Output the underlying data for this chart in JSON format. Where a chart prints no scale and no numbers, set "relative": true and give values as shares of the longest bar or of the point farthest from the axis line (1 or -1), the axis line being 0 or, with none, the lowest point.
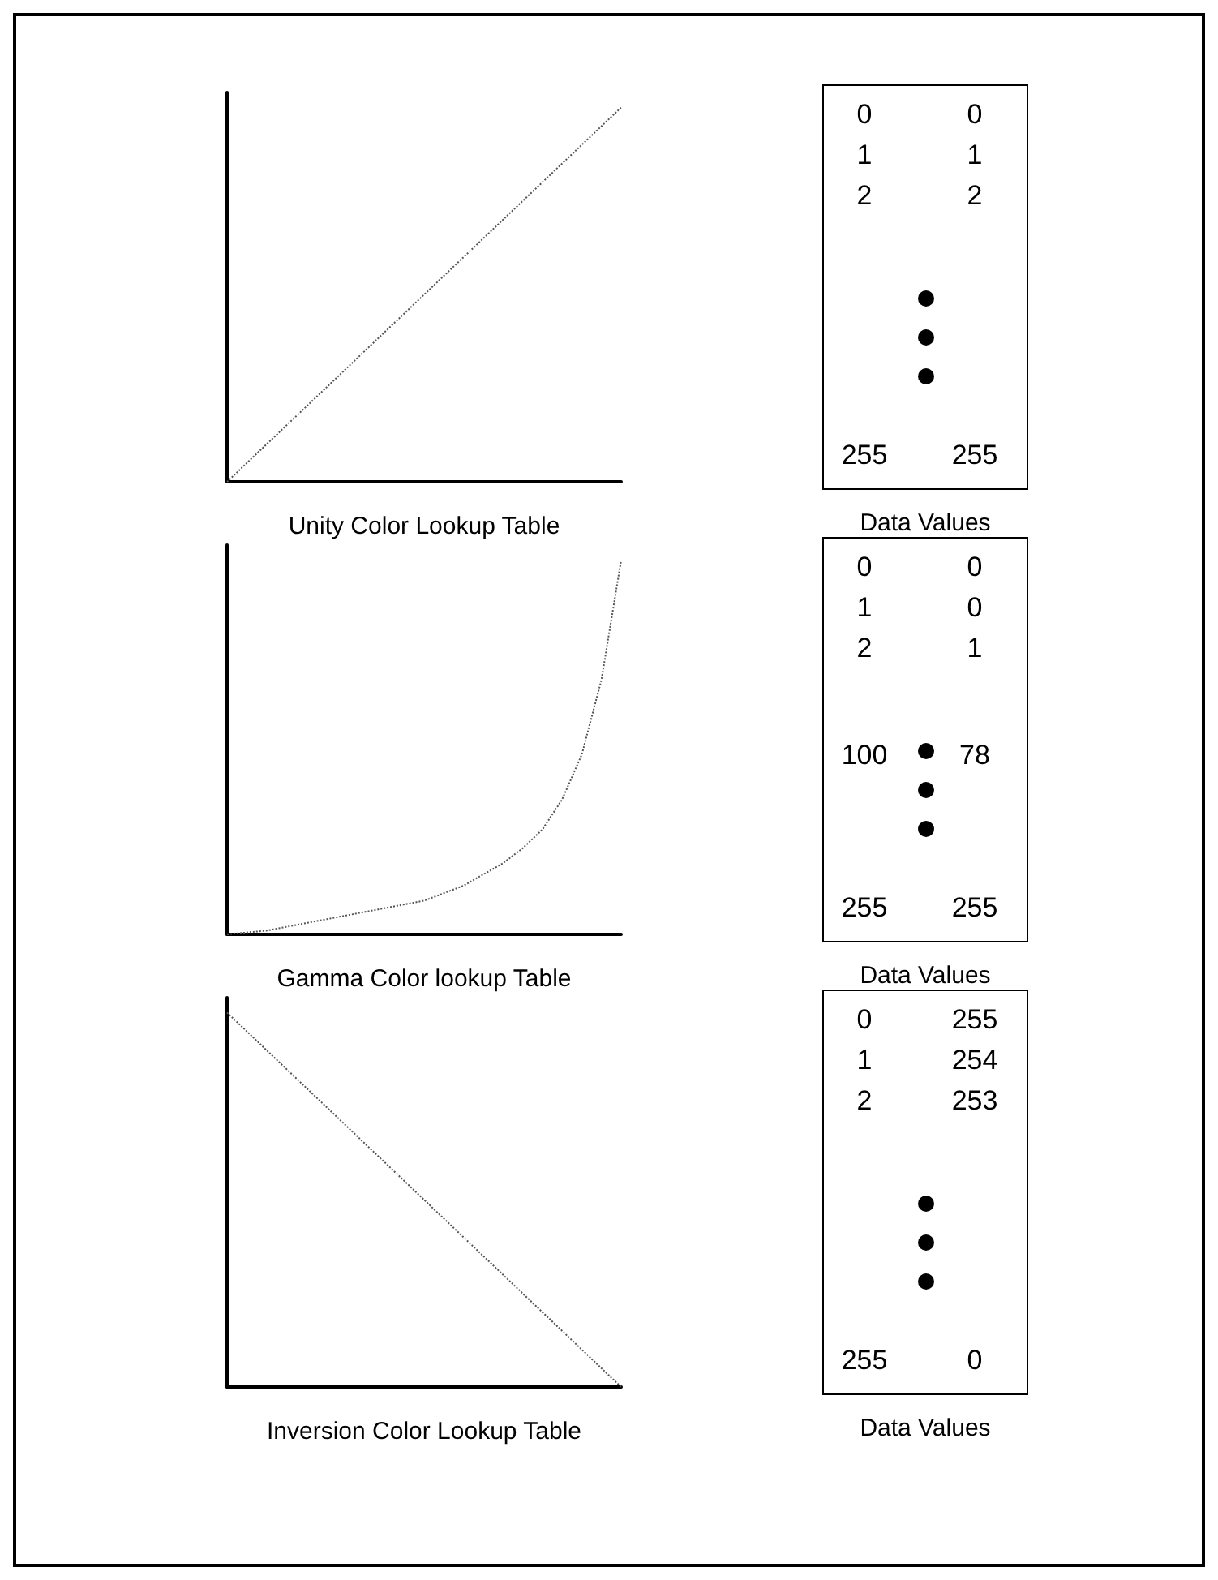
{
  "chart_data": [
    {
      "type": "line",
      "xlabel": "Unity Color Lookup Table",
      "relative": true,
      "categories": [
        null,
        null,
        null,
        null,
        null,
        null,
        null,
        null,
        null,
        null,
        null
      ],
      "values": [
        0,
        0.1,
        0.2,
        0.3,
        0.4,
        0.5,
        0.6,
        0.7,
        0.8,
        0.9,
        1
      ],
      "color": "#555555",
      "line_style": "dotted"
    },
    {
      "type": "other",
      "xlabel": "Data Values",
      "annotations": [
        "0",
        "0",
        "1",
        "1",
        "2",
        "2",
        "255",
        "255"
      ]
    },
    {
      "type": "line",
      "xlabel": "Gamma Color lookup Table",
      "relative": true,
      "categories": [
        null,
        null,
        null,
        null,
        null,
        null,
        null,
        null,
        null,
        null,
        null,
        null,
        null,
        null,
        null,
        null,
        null,
        null,
        null,
        null,
        null
      ],
      "values": [
        0,
        0.005,
        0.01,
        0.02,
        0.03,
        0.04,
        0.05,
        0.06,
        0.07,
        0.08,
        0.09,
        0.11,
        0.13,
        0.16,
        0.19,
        0.23,
        0.28,
        0.36,
        0.48,
        0.68,
        1
      ],
      "color": "#555555",
      "line_style": "dotted"
    },
    {
      "type": "other",
      "xlabel": "Data Values",
      "annotations": [
        "0",
        "0",
        "1",
        "0",
        "2",
        "1",
        "100",
        "78",
        "255",
        "255"
      ]
    },
    {
      "type": "line",
      "xlabel": "Inversion Color Lookup Table",
      "relative": true,
      "categories": [
        null,
        null,
        null,
        null,
        null,
        null,
        null,
        null,
        null,
        null,
        null
      ],
      "values": [
        1,
        0.9,
        0.8,
        0.7,
        0.6,
        0.5,
        0.4,
        0.3,
        0.2,
        0.1,
        0
      ],
      "color": "#555555",
      "line_style": "dotted"
    },
    {
      "type": "other",
      "xlabel": "Data Values",
      "annotations": [
        "0",
        "255",
        "1",
        "254",
        "2",
        "253",
        "255",
        "0"
      ]
    }
  ]
}
